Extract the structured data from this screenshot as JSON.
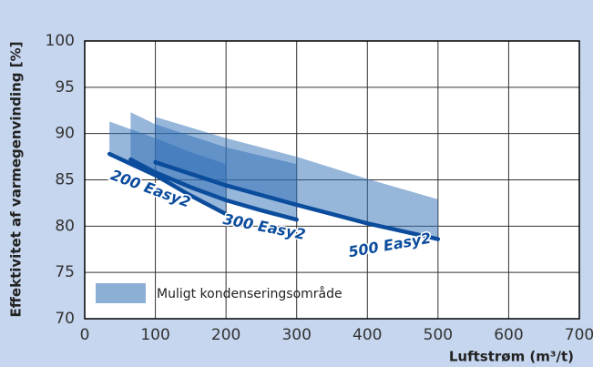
{
  "chart_data": {
    "type": "line",
    "xlabel": "Luftstrøm (m³/t)",
    "ylabel": "Effektivitet af varmegenvinding [%]",
    "xlim": [
      0,
      700
    ],
    "xticks": [
      0,
      100,
      200,
      300,
      400,
      500,
      600,
      700
    ],
    "ylim": [
      70,
      100
    ],
    "yticks": [
      70,
      75,
      80,
      85,
      90,
      95,
      100
    ],
    "grid": true,
    "series": [
      {
        "name": "200 Easy2",
        "color": "#0b4c9c",
        "x": [
          35,
          100,
          150,
          200
        ],
        "values": [
          87.8,
          85.5,
          83.3,
          81.3
        ]
      },
      {
        "name": "300 Easy2",
        "color": "#0b4c9c",
        "x": [
          65,
          100,
          150,
          200,
          250,
          300
        ],
        "values": [
          87.2,
          85.8,
          84.2,
          82.8,
          81.7,
          80.7
        ]
      },
      {
        "name": "500 Easy2",
        "color": "#0b4c9c",
        "x": [
          100,
          200,
          300,
          400,
          500
        ],
        "values": [
          86.9,
          84.4,
          82.3,
          80.3,
          78.6
        ]
      }
    ],
    "band_name": "Muligt kondenseringsområde",
    "band_color": "#2d6db5",
    "bands": [
      {
        "x": [
          35,
          100,
          150,
          200
        ],
        "upper": [
          91.3,
          89.5,
          88.0,
          86.7
        ],
        "lower": [
          87.8,
          85.5,
          83.3,
          81.3
        ]
      },
      {
        "x": [
          65,
          100,
          200,
          300
        ],
        "upper": [
          92.3,
          91.0,
          88.5,
          86.7
        ],
        "lower": [
          87.2,
          85.8,
          82.8,
          80.7
        ]
      },
      {
        "x": [
          100,
          200,
          300,
          400,
          500
        ],
        "upper": [
          91.8,
          89.5,
          87.5,
          85.1,
          82.9
        ],
        "lower": [
          86.9,
          84.4,
          82.3,
          80.3,
          78.6
        ]
      }
    ]
  }
}
